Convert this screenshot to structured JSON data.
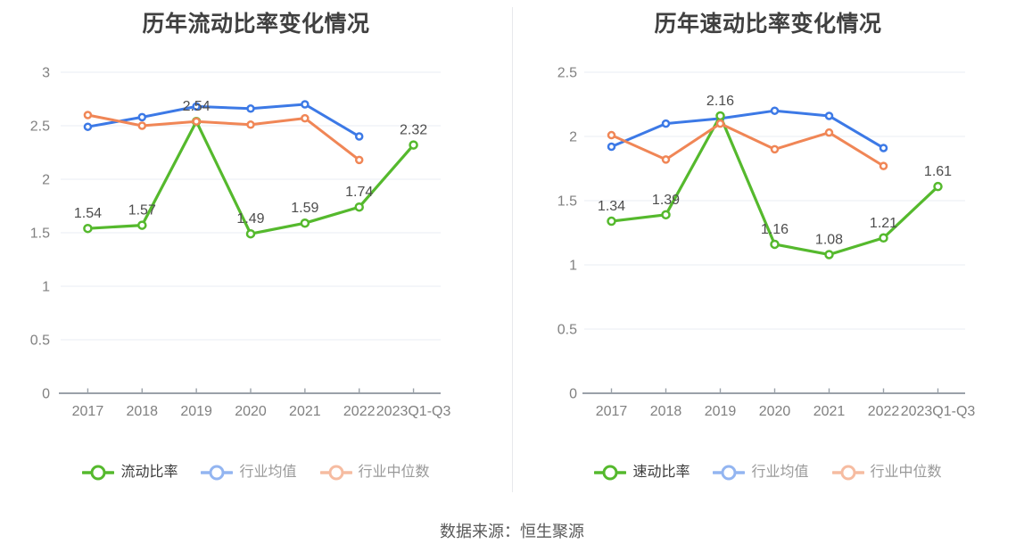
{
  "source": {
    "label": "数据来源：恒生聚源"
  },
  "chart_data": [
    {
      "type": "line",
      "title": "历年流动比率变化情况",
      "categories": [
        "2017",
        "2018",
        "2019",
        "2020",
        "2021",
        "2022",
        "2023Q1-Q3"
      ],
      "xlabel": "",
      "ylabel": "",
      "y_axis": {
        "min": 0,
        "max": 3,
        "interval": 0.5
      },
      "grid": true,
      "legend_position": "bottom",
      "series": [
        {
          "name": "流动比率",
          "color": "#55b92d",
          "z": 2,
          "show_labels": true,
          "marker_r": 4,
          "line_width": 3.2,
          "legend_opacity": 1,
          "legend_text_color": "#3c3c3c",
          "values": [
            1.54,
            1.57,
            2.54,
            1.49,
            1.59,
            1.74,
            2.32
          ]
        },
        {
          "name": "行业均值",
          "color": "#3c79e6",
          "z": 1,
          "show_labels": false,
          "marker_r": 3.5,
          "line_width": 3,
          "legend_opacity": 0.55,
          "legend_text_color": "#999999",
          "values": [
            2.49,
            2.58,
            2.68,
            2.66,
            2.7,
            2.4
          ]
        },
        {
          "name": "行业中位数",
          "color": "#f08656",
          "z": 3,
          "show_labels": false,
          "marker_r": 3.5,
          "line_width": 3,
          "legend_opacity": 0.55,
          "legend_text_color": "#999999",
          "values": [
            2.6,
            2.5,
            2.54,
            2.51,
            2.57,
            2.18
          ]
        }
      ],
      "label_color": "#4d4d4d",
      "axis_color": "#9aa1a9",
      "axis_text_color": "#808080",
      "grid_color": "#e8ecf3"
    },
    {
      "type": "line",
      "title": "历年速动比率变化情况",
      "categories": [
        "2017",
        "2018",
        "2019",
        "2020",
        "2021",
        "2022",
        "2023Q1-Q3"
      ],
      "xlabel": "",
      "ylabel": "",
      "y_axis": {
        "min": 0,
        "max": 2.5,
        "interval": 0.5
      },
      "grid": true,
      "legend_position": "bottom",
      "series": [
        {
          "name": "速动比率",
          "color": "#55b92d",
          "z": 2,
          "show_labels": true,
          "marker_r": 4,
          "line_width": 3.2,
          "legend_opacity": 1,
          "legend_text_color": "#3c3c3c",
          "values": [
            1.34,
            1.39,
            2.16,
            1.16,
            1.08,
            1.21,
            1.61
          ]
        },
        {
          "name": "行业均值",
          "color": "#3c79e6",
          "z": 1,
          "show_labels": false,
          "marker_r": 3.5,
          "line_width": 3,
          "legend_opacity": 0.55,
          "legend_text_color": "#999999",
          "values": [
            1.92,
            2.1,
            2.14,
            2.2,
            2.16,
            1.91
          ]
        },
        {
          "name": "行业中位数",
          "color": "#f08656",
          "z": 3,
          "show_labels": false,
          "marker_r": 3.5,
          "line_width": 3,
          "legend_opacity": 0.55,
          "legend_text_color": "#999999",
          "values": [
            2.01,
            1.82,
            2.1,
            1.9,
            2.03,
            1.77
          ]
        }
      ],
      "label_color": "#4d4d4d",
      "axis_color": "#9aa1a9",
      "axis_text_color": "#808080",
      "grid_color": "#e8ecf3"
    }
  ]
}
